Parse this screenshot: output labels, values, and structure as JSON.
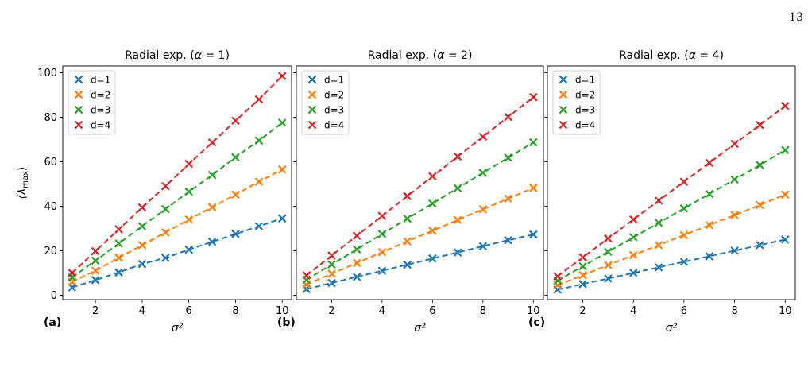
{
  "page_number": "13",
  "ylabel": "⟨λmax⟩",
  "ylabel_parts": {
    "base": "⟨λ",
    "sub": "max",
    "close": "⟩"
  },
  "colors": {
    "d1": "#1f77b4",
    "d2": "#ff7f0e",
    "d3": "#2ca02c",
    "d4": "#d62728"
  },
  "chart_data": [
    {
      "type": "line",
      "panel_label": "(a)",
      "title": "Radial exp. (α = 1)",
      "title_parts": {
        "pre": "Radial exp. (",
        "sym": "α",
        "post": " = 1)"
      },
      "xlabel": "σ²",
      "ylabel": "⟨λmax⟩",
      "xlim": [
        0.6,
        10.4
      ],
      "ylim": [
        -2,
        103
      ],
      "xticks": [
        2,
        4,
        6,
        8,
        10
      ],
      "yticks": [
        0,
        20,
        40,
        60,
        80,
        100
      ],
      "legend": "top-left",
      "markers": "x",
      "line_style": "dashed",
      "x": [
        1,
        2,
        3,
        4,
        5,
        6,
        7,
        8,
        9,
        10
      ],
      "series": [
        {
          "name": "d=1",
          "values": [
            3.5,
            6.8,
            10.2,
            14.0,
            16.8,
            20.5,
            24.0,
            27.5,
            31.0,
            34.5
          ]
        },
        {
          "name": "d=2",
          "values": [
            6.0,
            11.0,
            16.8,
            22.5,
            28.2,
            34.0,
            39.5,
            45.2,
            51.0,
            56.5
          ]
        },
        {
          "name": "d=3",
          "values": [
            8.0,
            15.5,
            23.2,
            31.0,
            38.7,
            46.5,
            54.0,
            62.0,
            69.5,
            77.5
          ]
        },
        {
          "name": "d=4",
          "values": [
            10.0,
            19.8,
            29.6,
            39.4,
            49.0,
            59.0,
            68.6,
            78.4,
            88.0,
            98.5
          ]
        }
      ]
    },
    {
      "type": "line",
      "panel_label": "(b)",
      "title": "Radial exp. (α = 2)",
      "title_parts": {
        "pre": "Radial exp. (",
        "sym": "α",
        "post": " = 2)"
      },
      "xlabel": "σ²",
      "ylabel": "⟨λmax⟩",
      "xlim": [
        0.6,
        10.4
      ],
      "ylim": [
        -2,
        103
      ],
      "xticks": [
        2,
        4,
        6,
        8,
        10
      ],
      "yticks": [
        0,
        20,
        40,
        60,
        80,
        100
      ],
      "legend": "top-left",
      "markers": "x",
      "line_style": "dashed",
      "x": [
        1,
        2,
        3,
        4,
        5,
        6,
        7,
        8,
        9,
        10
      ],
      "series": [
        {
          "name": "d=1",
          "values": [
            2.7,
            5.5,
            8.2,
            11.0,
            13.7,
            16.5,
            19.2,
            22.0,
            24.7,
            27.3
          ]
        },
        {
          "name": "d=2",
          "values": [
            4.8,
            9.6,
            14.5,
            19.3,
            24.2,
            29.0,
            33.8,
            38.6,
            43.4,
            48.2
          ]
        },
        {
          "name": "d=3",
          "values": [
            6.9,
            13.8,
            20.6,
            27.5,
            34.4,
            41.2,
            48.1,
            55.0,
            61.8,
            68.7
          ]
        },
        {
          "name": "d=4",
          "values": [
            8.9,
            17.8,
            26.7,
            35.6,
            44.5,
            53.4,
            62.3,
            71.2,
            80.1,
            89.0
          ]
        }
      ]
    },
    {
      "type": "line",
      "panel_label": "(c)",
      "title": "Radial exp. (α = 4)",
      "title_parts": {
        "pre": "Radial exp. (",
        "sym": "α",
        "post": " = 4)"
      },
      "xlabel": "σ²",
      "ylabel": "⟨λmax⟩",
      "xlim": [
        0.6,
        10.4
      ],
      "ylim": [
        -2,
        103
      ],
      "xticks": [
        2,
        4,
        6,
        8,
        10
      ],
      "yticks": [
        0,
        20,
        40,
        60,
        80,
        100
      ],
      "legend": "top-left",
      "markers": "x",
      "line_style": "dashed",
      "x": [
        1,
        2,
        3,
        4,
        5,
        6,
        7,
        8,
        9,
        10
      ],
      "series": [
        {
          "name": "d=1",
          "values": [
            2.5,
            5.0,
            7.5,
            10.0,
            12.5,
            15.0,
            17.5,
            20.0,
            22.5,
            25.0
          ]
        },
        {
          "name": "d=2",
          "values": [
            4.5,
            9.0,
            13.5,
            18.0,
            22.5,
            27.0,
            31.5,
            36.0,
            40.5,
            45.2
          ]
        },
        {
          "name": "d=3",
          "values": [
            6.5,
            13.0,
            19.5,
            26.0,
            32.5,
            39.0,
            45.5,
            52.0,
            58.5,
            65.2
          ]
        },
        {
          "name": "d=4",
          "values": [
            8.5,
            17.0,
            25.5,
            34.0,
            42.5,
            51.0,
            59.5,
            68.0,
            76.5,
            85.0
          ]
        }
      ]
    }
  ]
}
